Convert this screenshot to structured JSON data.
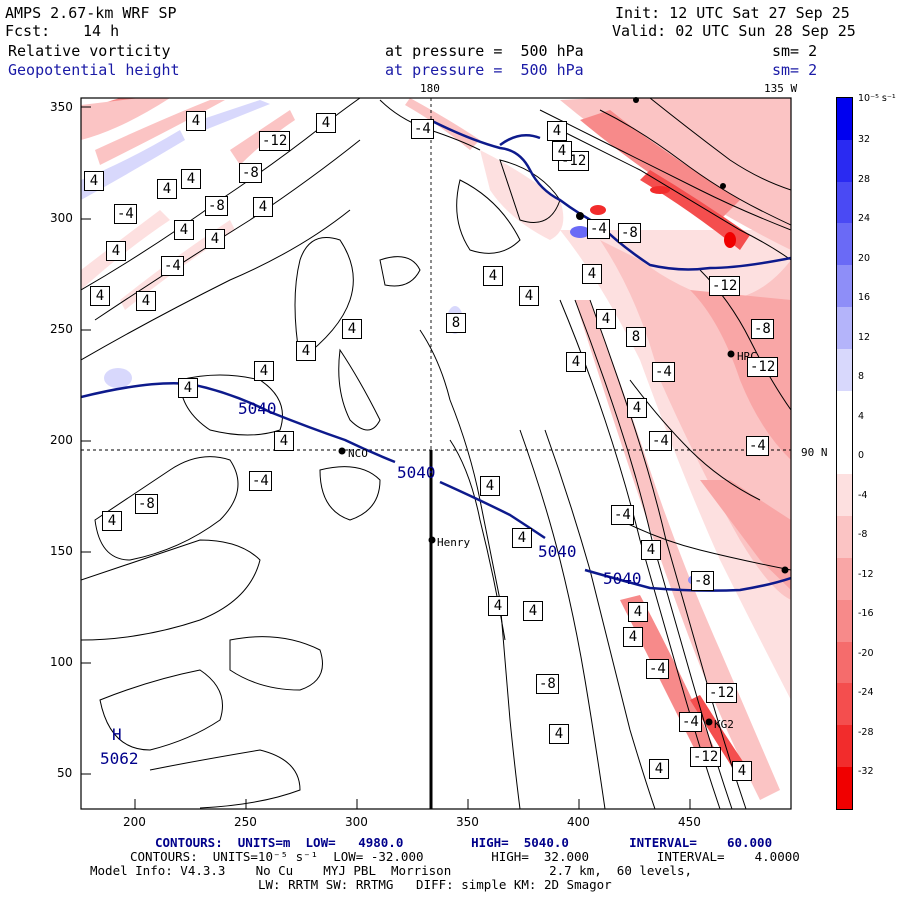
{
  "header": {
    "model": "AMPS 2.67-km WRF SP",
    "init": "Init: 12 UTC Sat 27 Sep 25",
    "fcst_label": "Fcst:",
    "fcst_value": "14 h",
    "valid": "Valid: 02 UTC Sun 28 Sep 25",
    "field1": "Relative vorticity",
    "field1_level": "at pressure =  500 hPa",
    "field1_sm": "sm= 2",
    "field2": "Geopotential height",
    "field2_level": "at pressure =  500 hPa",
    "field2_sm": "sm= 2"
  },
  "map_labels": {
    "lon_180": "180",
    "lon_135w": "135 W",
    "lat_90n": "90 N",
    "station_nco": "NCO",
    "station_henry": "Henry",
    "station_hrc": "HRC",
    "station_kg": "KG2",
    "high_mark": "H",
    "high_value": "5062",
    "height_labels": [
      "5040",
      "5040",
      "5040",
      "5040"
    ],
    "vort_labels": [
      "4",
      "-4",
      "-12",
      "4",
      "-8",
      "-4",
      "4",
      "-8",
      "4",
      "4",
      "4",
      "4",
      "-4",
      "4",
      "4",
      "4",
      "4",
      "4",
      "4",
      "4",
      "4",
      "4",
      "8",
      "4",
      "4",
      "-12",
      "4",
      "4",
      "-4",
      "4",
      "-8",
      "-4",
      "-12",
      "4",
      "-8",
      "-12",
      "-4",
      "4",
      "4",
      "8",
      "-4",
      "-8",
      "4",
      "-4",
      "4",
      "4",
      "4",
      "-8",
      "-4",
      "4",
      "4",
      "4",
      "-4",
      "-8",
      "4",
      "4",
      "-12",
      "-4",
      "-12",
      "4",
      "4"
    ]
  },
  "axes": {
    "y_ticks": [
      "350",
      "300",
      "250",
      "200",
      "150",
      "100",
      "50"
    ],
    "x_ticks": [
      "200",
      "250",
      "300",
      "350",
      "400",
      "450"
    ]
  },
  "colorbar": {
    "unit": "10⁻⁵ s⁻¹",
    "labels": [
      "32",
      "28",
      "24",
      "20",
      "16",
      "12",
      "8",
      "4",
      "0",
      "-4",
      "-8",
      "-12",
      "-16",
      "-20",
      "-24",
      "-28",
      "-32"
    ],
    "colors": [
      "#0000f0",
      "#2a2af2",
      "#4a4af4",
      "#6a6af6",
      "#8e8ef8",
      "#b4b4fa",
      "#d8d8fc",
      "#ffffff",
      "#ffffff",
      "#fde0e0",
      "#fbc4c4",
      "#f9a6a6",
      "#f78a8a",
      "#f56c6c",
      "#f44e4e",
      "#f22c2c",
      "#f00000"
    ]
  },
  "footer": {
    "line1": "CONTOURS:  UNITS=m  LOW=   4980.0         HIGH=  5040.0        INTERVAL=    60.000",
    "line2": "CONTOURS:  UNITS=10⁻⁵ s⁻¹  LOW= -32.000         HIGH=  32.000         INTERVAL=    4.0000",
    "line3": "Model Info: V4.3.3    No Cu    MYJ PBL  Morrison             2.7 km,  60 levels,",
    "line4": "LW: RRTM SW: RRTMG   DIFF: simple KM: 2D Smagor"
  }
}
